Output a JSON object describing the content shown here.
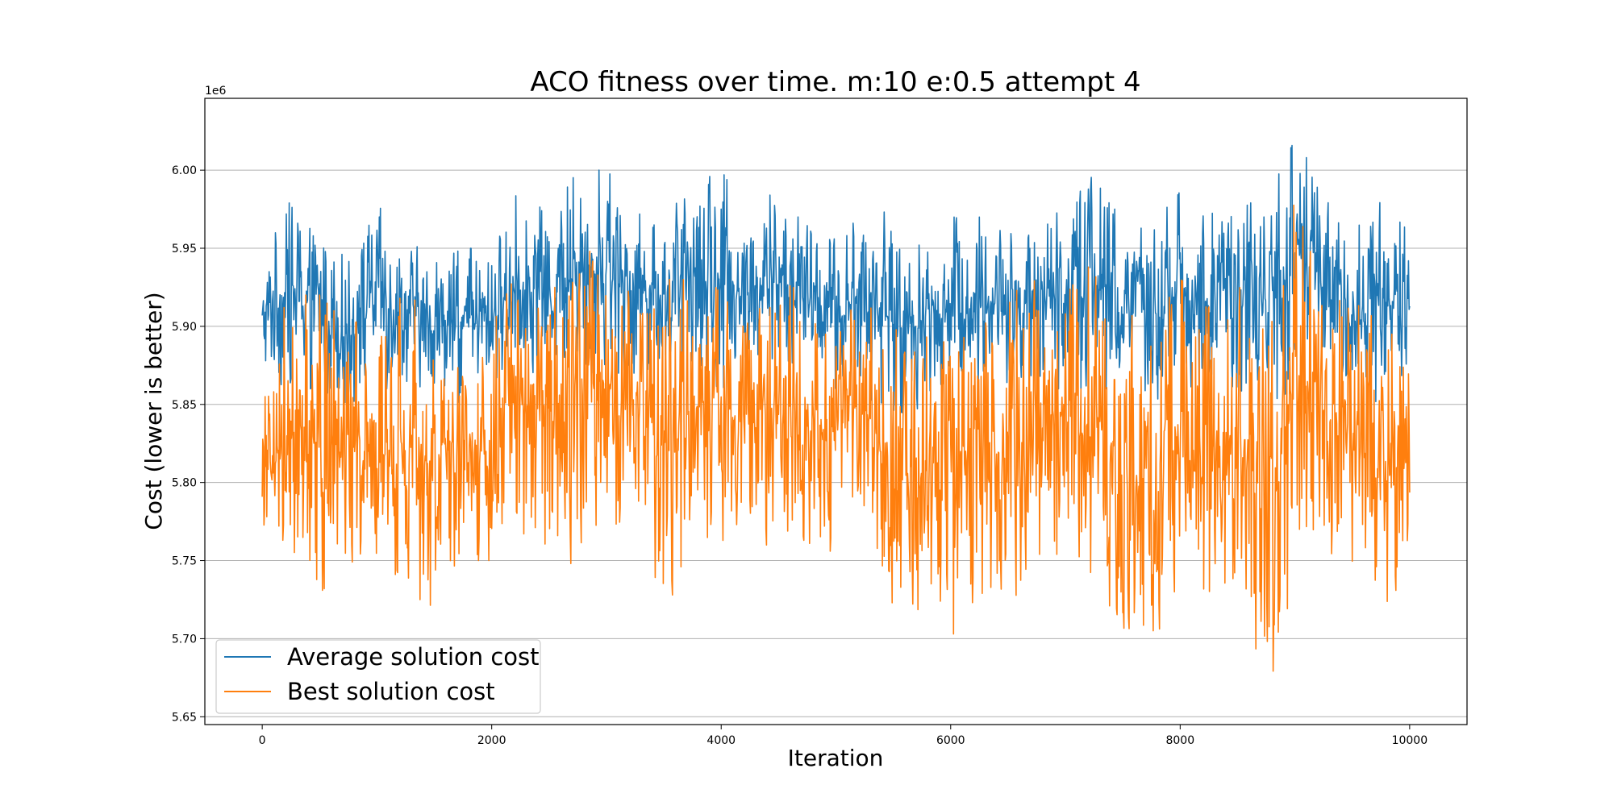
{
  "chart_data": {
    "type": "line",
    "title": "ACO fitness over time. m:10 e:0.5 attempt 4",
    "xlabel": "Iteration",
    "ylabel": "Cost (lower is better)",
    "y_offset_text": "1e6",
    "xlim": [
      -500,
      10500
    ],
    "ylim": [
      5.645,
      6.046
    ],
    "y_scale_factor": 1000000,
    "x_ticks": [
      0,
      2000,
      4000,
      6000,
      8000,
      10000
    ],
    "x_tick_labels": [
      "0",
      "2000",
      "4000",
      "6000",
      "8000",
      "10000"
    ],
    "y_ticks": [
      5.65,
      5.7,
      5.75,
      5.8,
      5.85,
      5.9,
      5.95,
      6.0
    ],
    "y_tick_labels": [
      "5.65",
      "5.70",
      "5.75",
      "5.80",
      "5.85",
      "5.90",
      "5.95",
      "6.00"
    ],
    "grid": "horizontal",
    "legend_placement": "lower-left",
    "x_range": [
      0,
      10000
    ],
    "num_points": 10001,
    "series": [
      {
        "name": "Average solution cost",
        "color": "#1f77b4",
        "envelope": {
          "x": [
            0,
            100,
            250,
            500,
            750,
            1000,
            1250,
            1500,
            1750,
            2000,
            2250,
            2500,
            2750,
            3000,
            3250,
            3500,
            3750,
            4000,
            4250,
            4500,
            4750,
            5000,
            5250,
            5500,
            5750,
            6000,
            6250,
            6500,
            6750,
            7000,
            7250,
            7500,
            7750,
            8000,
            8250,
            8500,
            8750,
            9000,
            9250,
            9500,
            9750,
            10000
          ],
          "low": [
            5.87,
            5.86,
            5.86,
            5.86,
            5.85,
            5.86,
            5.86,
            5.86,
            5.85,
            5.86,
            5.87,
            5.87,
            5.87,
            5.87,
            5.87,
            5.87,
            5.87,
            5.86,
            5.87,
            5.87,
            5.87,
            5.86,
            5.86,
            5.83,
            5.85,
            5.86,
            5.86,
            5.86,
            5.86,
            5.86,
            5.86,
            5.86,
            5.85,
            5.86,
            5.86,
            5.86,
            5.85,
            5.86,
            5.87,
            5.86,
            5.85,
            5.87
          ],
          "high": [
            5.93,
            5.97,
            5.98,
            5.97,
            5.95,
            5.98,
            5.96,
            5.94,
            5.95,
            5.95,
            5.99,
            5.97,
            6.0,
            6.0,
            5.98,
            5.97,
            5.99,
            6.0,
            5.97,
            5.99,
            5.97,
            5.96,
            5.98,
            5.97,
            5.95,
            5.97,
            5.97,
            5.97,
            5.96,
            5.99,
            6.01,
            5.97,
            5.96,
            5.99,
            5.97,
            5.99,
            5.98,
            6.02,
            5.99,
            5.96,
            5.98,
            5.96
          ]
        }
      },
      {
        "name": "Best solution cost",
        "color": "#ff7f0e",
        "envelope": {
          "x": [
            0,
            100,
            250,
            500,
            750,
            1000,
            1250,
            1500,
            1750,
            2000,
            2250,
            2500,
            2750,
            3000,
            3250,
            3500,
            3750,
            4000,
            4250,
            4500,
            4750,
            5000,
            5250,
            5500,
            5750,
            6000,
            6250,
            6500,
            6750,
            7000,
            7250,
            7500,
            7750,
            8000,
            8250,
            8500,
            8750,
            9000,
            9250,
            9500,
            9750,
            10000
          ],
          "low": [
            5.74,
            5.73,
            5.76,
            5.72,
            5.75,
            5.74,
            5.73,
            5.72,
            5.75,
            5.75,
            5.76,
            5.74,
            5.75,
            5.77,
            5.78,
            5.71,
            5.77,
            5.76,
            5.76,
            5.76,
            5.74,
            5.76,
            5.76,
            5.71,
            5.72,
            5.7,
            5.73,
            5.72,
            5.74,
            5.76,
            5.74,
            5.7,
            5.69,
            5.74,
            5.73,
            5.74,
            5.66,
            5.74,
            5.76,
            5.74,
            5.68,
            5.77
          ],
          "high": [
            5.84,
            5.9,
            5.92,
            5.92,
            5.9,
            5.91,
            5.92,
            5.91,
            5.89,
            5.9,
            5.94,
            5.93,
            5.95,
            5.96,
            5.93,
            5.93,
            5.93,
            5.93,
            5.91,
            5.93,
            5.92,
            5.9,
            5.92,
            5.92,
            5.89,
            5.91,
            5.92,
            5.92,
            5.93,
            5.93,
            5.94,
            5.91,
            5.9,
            5.93,
            5.92,
            5.93,
            5.92,
            5.98,
            5.94,
            5.92,
            5.93,
            5.89
          ]
        }
      }
    ]
  }
}
